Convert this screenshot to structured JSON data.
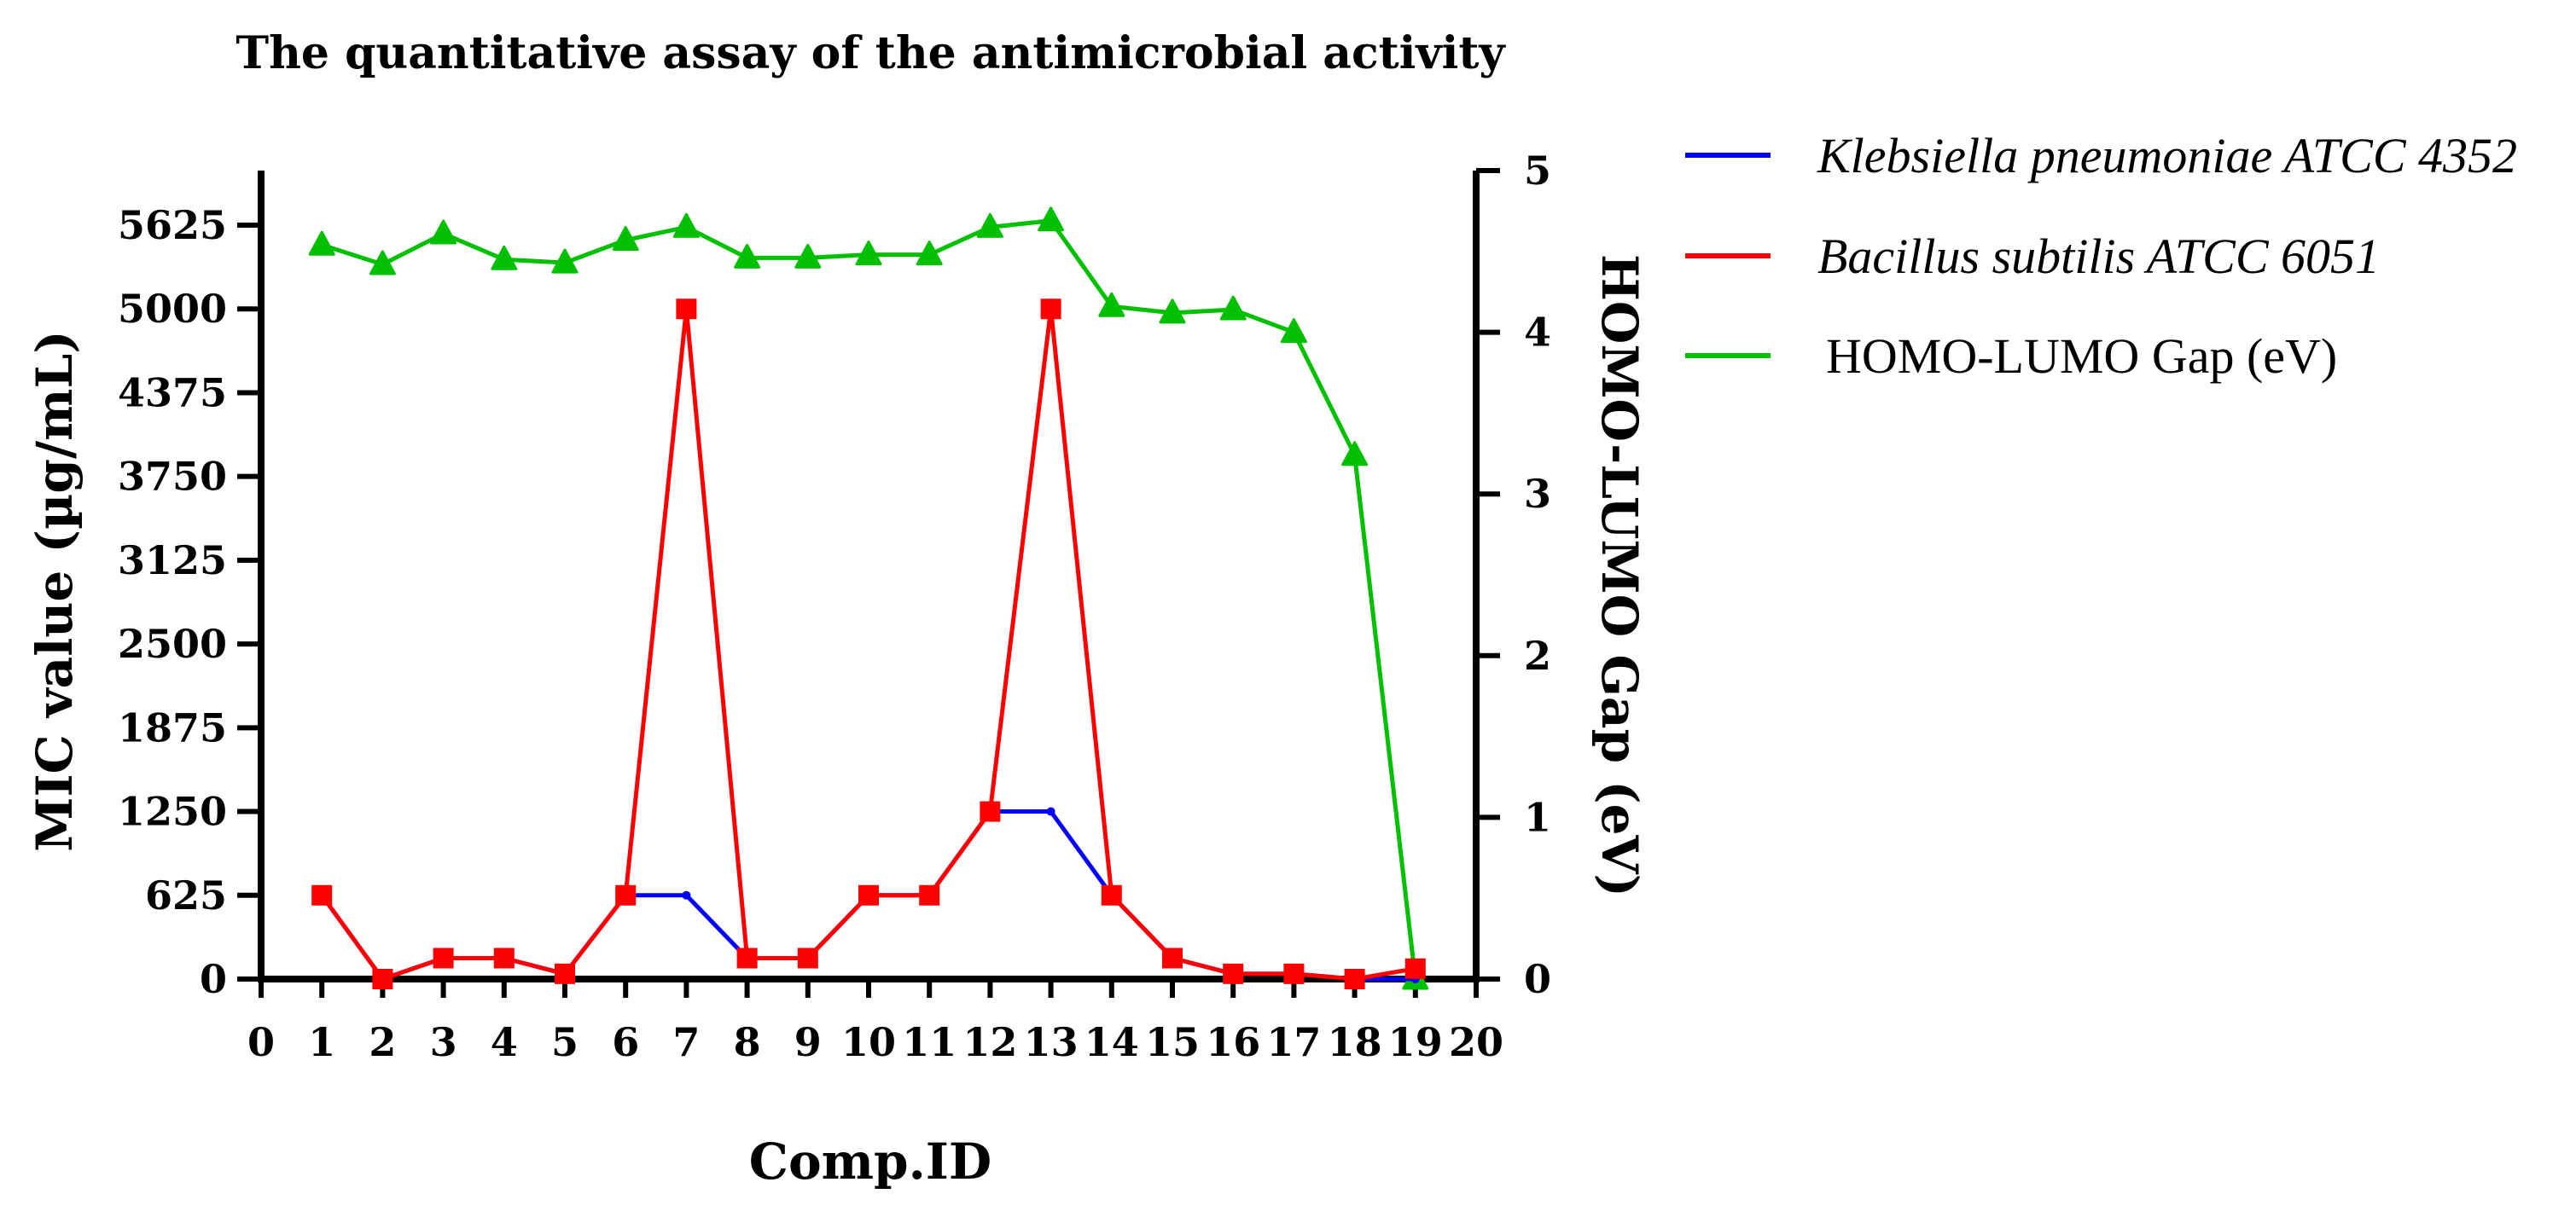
{
  "chart_data": {
    "type": "line",
    "title": "The quantitative assay of the antimicrobial activity",
    "xlabel": "Comp.ID",
    "ylabel": "MIC value (µg/mL)",
    "y2label": "HOMO-LUMO Gap (eV)",
    "xlim": [
      0,
      20
    ],
    "xticks": [
      "0",
      "1",
      "2",
      "3",
      "4",
      "5",
      "6",
      "7",
      "8",
      "9",
      "10",
      "11",
      "12",
      "13",
      "14",
      "15",
      "16",
      "17",
      "18",
      "19",
      "20"
    ],
    "ylim": [
      0,
      6000
    ],
    "yticks": [
      "0",
      "625",
      "1250",
      "1875",
      "2500",
      "3125",
      "3750",
      "4375",
      "5000",
      "5625"
    ],
    "y2lim": [
      0,
      5
    ],
    "y2ticks": [
      "0",
      "1",
      "2",
      "3",
      "4",
      "5"
    ],
    "grid": false,
    "legend_position": "right",
    "series": [
      {
        "name": "Klebsiella pneumoniae ATCC 4352",
        "axis": "left",
        "color": "#0000ff",
        "marker": "dot",
        "italic": true,
        "x": [
          1,
          2,
          3,
          4,
          5,
          6,
          7,
          8,
          9,
          10,
          11,
          12,
          13,
          14,
          15,
          16,
          17,
          18,
          19
        ],
        "values": [
          625,
          0,
          156,
          156,
          39,
          625,
          625,
          156,
          156,
          625,
          625,
          1250,
          1250,
          625,
          156,
          39,
          39,
          0,
          0
        ]
      },
      {
        "name": "Bacillus subtilis ATCC 6051",
        "axis": "left",
        "color": "#ff0000",
        "marker": "square",
        "italic": true,
        "x": [
          1,
          2,
          3,
          4,
          5,
          6,
          7,
          8,
          9,
          10,
          11,
          12,
          13,
          14,
          15,
          16,
          17,
          18,
          19
        ],
        "values": [
          625,
          0,
          156,
          156,
          39,
          625,
          5000,
          156,
          156,
          625,
          625,
          1250,
          5000,
          625,
          156,
          39,
          39,
          0,
          78
        ]
      },
      {
        "name": "HOMO-LUMO Gap (eV)",
        "axis": "right",
        "color": "#00c000",
        "marker": "triangle",
        "italic": false,
        "x": [
          1,
          2,
          3,
          4,
          5,
          6,
          7,
          8,
          9,
          10,
          11,
          12,
          13,
          14,
          15,
          16,
          17,
          18,
          19
        ],
        "values": [
          4.54,
          4.42,
          4.61,
          4.45,
          4.43,
          4.57,
          4.65,
          4.46,
          4.46,
          4.48,
          4.48,
          4.65,
          4.69,
          4.16,
          4.12,
          4.14,
          4.0,
          3.24,
          0.0
        ]
      }
    ]
  }
}
